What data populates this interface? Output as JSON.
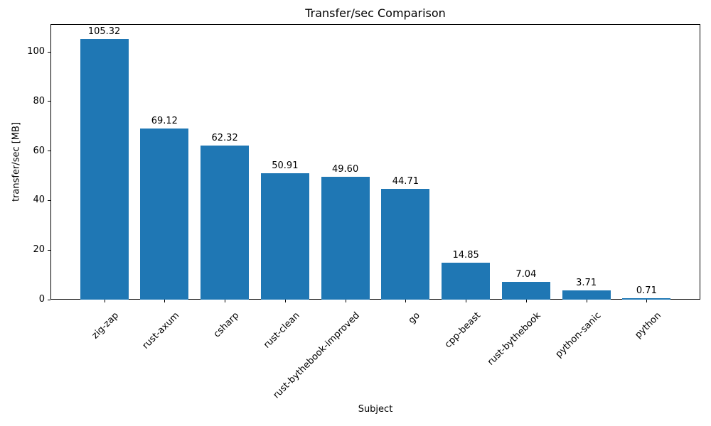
{
  "chart_data": {
    "type": "bar",
    "title": "Transfer/sec Comparison",
    "xlabel": "Subject",
    "ylabel": "transfer/sec [MB]",
    "categories": [
      "zig-zap",
      "rust-axum",
      "csharp",
      "rust-clean",
      "rust-bythebook-improved",
      "go",
      "cpp-beast",
      "rust-bythebook",
      "python-sanic",
      "python"
    ],
    "values": [
      105.32,
      69.12,
      62.32,
      50.91,
      49.6,
      44.71,
      14.85,
      7.04,
      3.71,
      0.71
    ],
    "bar_labels": [
      "105.32",
      "69.12",
      "62.32",
      "50.91",
      "49.60",
      "44.71",
      "14.85",
      "7.04",
      "3.71",
      "0.71"
    ],
    "yticks": [
      0,
      20,
      40,
      60,
      80,
      100
    ],
    "ytick_labels": [
      "0",
      "20",
      "40",
      "60",
      "80",
      "100"
    ],
    "ylim": [
      0,
      111.2
    ],
    "bar_color": "#1f77b4",
    "axis_color": "#000000",
    "grid": false,
    "legend_position": "none"
  }
}
